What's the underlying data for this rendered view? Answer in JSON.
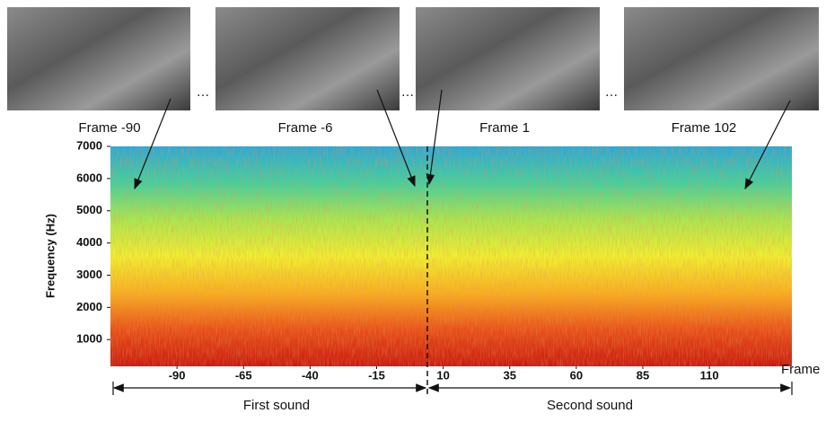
{
  "chart_data": {
    "type": "spectrogram",
    "ylabel": "Frequency (Hz)",
    "xlabel": "Frame",
    "ylim": [
      170,
      7000
    ],
    "yticks": [
      1000,
      2000,
      3000,
      4000,
      5000,
      6000,
      7000
    ],
    "xlim": [
      -115,
      141
    ],
    "xticks": [
      -90,
      -65,
      -40,
      -15,
      10,
      35,
      60,
      85,
      110
    ],
    "colormap": [
      "#2aa8d8",
      "#40d0a0",
      "#a8e850",
      "#f0f030",
      "#f8b020",
      "#e85018",
      "#c81810"
    ]
  },
  "frames": [
    {
      "label": "Frame -90"
    },
    {
      "label": "Frame -6"
    },
    {
      "label": "Frame 1"
    },
    {
      "label": "Frame 102"
    }
  ],
  "ellipses": [
    "…",
    "…",
    "…"
  ],
  "segments": [
    "First sound",
    "Second sound"
  ]
}
